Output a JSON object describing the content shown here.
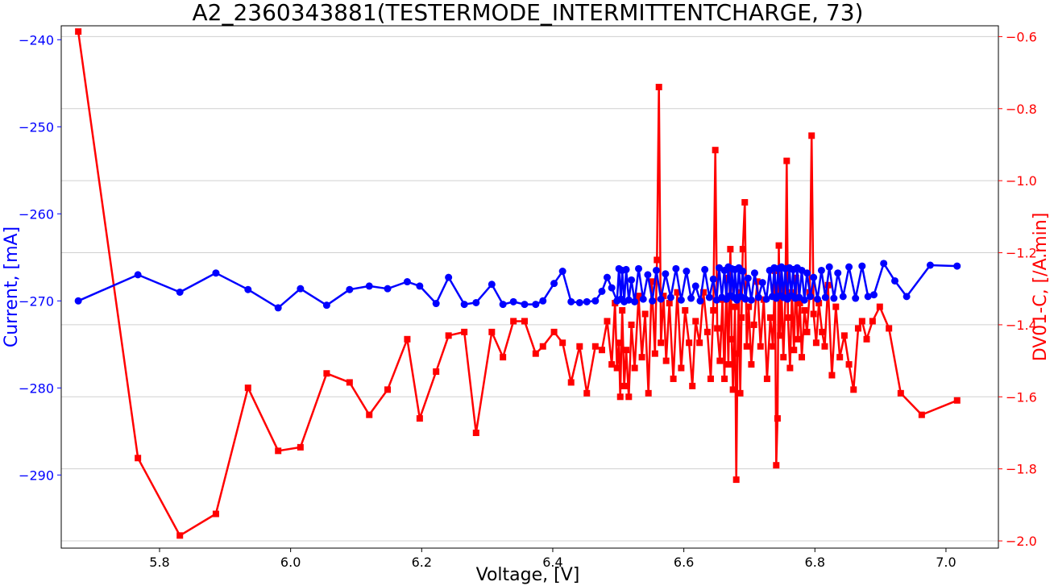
{
  "chart_data": {
    "type": "line",
    "title": "A2_2360343881(TESTERMODE_INTERMITTENTCHARGE, 73)",
    "xlabel": "Voltage, [V]",
    "ylabel_left": "Current, [mA]",
    "ylabel_right": "DV01-C, [/A.min]",
    "xlim": [
      5.65,
      7.08
    ],
    "ylim_left": [
      -298.4,
      -238.4
    ],
    "ylim_right": [
      -2.02,
      -0.57
    ],
    "x_ticks": [
      "5.8",
      "6.0",
      "6.2",
      "6.4",
      "6.6",
      "6.8",
      "7.0"
    ],
    "y_left_ticks": [
      "-240",
      "-250",
      "-260",
      "-270",
      "-280",
      "-290"
    ],
    "y_right_ticks": [
      "-0.6",
      "-0.8",
      "-1.0",
      "-1.2",
      "-1.4",
      "-1.6",
      "-1.8",
      "-2.0"
    ],
    "grid": "horizontal-right-axis",
    "colors": {
      "current": "#0000ff",
      "dv": "#ff0000"
    },
    "series": [
      {
        "axis": "left",
        "marker": "circle",
        "points": [
          [
            5.676,
            -270.0
          ],
          [
            5.767,
            -267.0
          ],
          [
            5.831,
            -269.0
          ],
          [
            5.886,
            -266.8
          ],
          [
            5.935,
            -268.7
          ],
          [
            5.981,
            -270.8
          ],
          [
            6.015,
            -268.6
          ],
          [
            6.055,
            -270.5
          ],
          [
            6.09,
            -268.7
          ],
          [
            6.12,
            -268.3
          ],
          [
            6.148,
            -268.6
          ],
          [
            6.178,
            -267.8
          ],
          [
            6.197,
            -268.3
          ],
          [
            6.222,
            -270.3
          ],
          [
            6.241,
            -267.3
          ],
          [
            6.265,
            -270.4
          ],
          [
            6.283,
            -270.2
          ],
          [
            6.307,
            -268.1
          ],
          [
            6.324,
            -270.4
          ],
          [
            6.34,
            -270.1
          ],
          [
            6.357,
            -270.4
          ],
          [
            6.374,
            -270.4
          ],
          [
            6.385,
            -270.0
          ],
          [
            6.402,
            -268.0
          ],
          [
            6.415,
            -266.6
          ],
          [
            6.428,
            -270.1
          ],
          [
            6.441,
            -270.2
          ],
          [
            6.452,
            -270.1
          ],
          [
            6.465,
            -270.0
          ],
          [
            6.475,
            -268.9
          ],
          [
            6.483,
            -267.3
          ],
          [
            6.49,
            -268.5
          ],
          [
            6.498,
            -270.0
          ],
          [
            6.501,
            -266.3
          ],
          [
            6.504,
            -269.8
          ],
          [
            6.506,
            -266.5
          ],
          [
            6.509,
            -270.1
          ],
          [
            6.512,
            -266.4
          ],
          [
            6.516,
            -269.9
          ],
          [
            6.52,
            -267.6
          ],
          [
            6.525,
            -270.1
          ],
          [
            6.531,
            -266.3
          ],
          [
            6.538,
            -269.8
          ],
          [
            6.545,
            -267.0
          ],
          [
            6.552,
            -270.0
          ],
          [
            6.558,
            -266.5
          ],
          [
            6.565,
            -269.8
          ],
          [
            6.572,
            -266.9
          ],
          [
            6.58,
            -269.6
          ],
          [
            6.588,
            -266.3
          ],
          [
            6.596,
            -269.9
          ],
          [
            6.604,
            -266.6
          ],
          [
            6.611,
            -269.7
          ],
          [
            6.618,
            -268.3
          ],
          [
            6.625,
            -270.0
          ],
          [
            6.632,
            -266.4
          ],
          [
            6.639,
            -269.6
          ],
          [
            6.645,
            -267.5
          ],
          [
            6.65,
            -269.9
          ],
          [
            6.654,
            -266.2
          ],
          [
            6.658,
            -269.6
          ],
          [
            6.662,
            -266.5
          ],
          [
            6.665,
            -269.8
          ],
          [
            6.668,
            -266.1
          ],
          [
            6.671,
            -269.4
          ],
          [
            6.673,
            -266.3
          ],
          [
            6.676,
            -269.6
          ],
          [
            6.678,
            -266.4
          ],
          [
            6.681,
            -269.9
          ],
          [
            6.684,
            -266.2
          ],
          [
            6.687,
            -269.5
          ],
          [
            6.69,
            -266.6
          ],
          [
            6.694,
            -269.8
          ],
          [
            6.698,
            -267.4
          ],
          [
            6.703,
            -269.9
          ],
          [
            6.708,
            -266.8
          ],
          [
            6.714,
            -269.6
          ],
          [
            6.72,
            -267.9
          ],
          [
            6.726,
            -269.8
          ],
          [
            6.731,
            -266.5
          ],
          [
            6.735,
            -269.5
          ],
          [
            6.738,
            -266.2
          ],
          [
            6.741,
            -269.7
          ],
          [
            6.744,
            -266.3
          ],
          [
            6.747,
            -269.4
          ],
          [
            6.749,
            -266.1
          ],
          [
            6.752,
            -269.6
          ],
          [
            6.755,
            -266.3
          ],
          [
            6.758,
            -269.8
          ],
          [
            6.761,
            -266.2
          ],
          [
            6.764,
            -269.4
          ],
          [
            6.767,
            -266.4
          ],
          [
            6.77,
            -269.7
          ],
          [
            6.773,
            -266.2
          ],
          [
            6.776,
            -269.6
          ],
          [
            6.78,
            -266.5
          ],
          [
            6.784,
            -269.9
          ],
          [
            6.788,
            -266.8
          ],
          [
            6.793,
            -269.5
          ],
          [
            6.798,
            -267.3
          ],
          [
            6.804,
            -269.8
          ],
          [
            6.81,
            -266.5
          ],
          [
            6.816,
            -269.6
          ],
          [
            6.822,
            -266.1
          ],
          [
            6.829,
            -269.7
          ],
          [
            6.835,
            -266.8
          ],
          [
            6.843,
            -269.5
          ],
          [
            6.852,
            -266.1
          ],
          [
            6.862,
            -269.7
          ],
          [
            6.872,
            -266.0
          ],
          [
            6.881,
            -269.5
          ],
          [
            6.89,
            -269.3
          ],
          [
            6.905,
            -265.7
          ],
          [
            6.922,
            -267.7
          ],
          [
            6.94,
            -269.5
          ],
          [
            6.976,
            -265.9
          ],
          [
            7.017,
            -266.0
          ]
        ]
      },
      {
        "axis": "right",
        "marker": "square",
        "points": [
          [
            5.676,
            -0.586
          ],
          [
            5.767,
            -1.77
          ],
          [
            5.831,
            -1.985
          ],
          [
            5.886,
            -1.925
          ],
          [
            5.935,
            -1.575
          ],
          [
            5.981,
            -1.75
          ],
          [
            6.015,
            -1.74
          ],
          [
            6.055,
            -1.535
          ],
          [
            6.09,
            -1.56
          ],
          [
            6.12,
            -1.65
          ],
          [
            6.148,
            -1.58
          ],
          [
            6.178,
            -1.44
          ],
          [
            6.197,
            -1.66
          ],
          [
            6.222,
            -1.53
          ],
          [
            6.241,
            -1.43
          ],
          [
            6.265,
            -1.42
          ],
          [
            6.283,
            -1.7
          ],
          [
            6.307,
            -1.42
          ],
          [
            6.324,
            -1.49
          ],
          [
            6.34,
            -1.39
          ],
          [
            6.357,
            -1.39
          ],
          [
            6.374,
            -1.48
          ],
          [
            6.385,
            -1.46
          ],
          [
            6.402,
            -1.42
          ],
          [
            6.415,
            -1.45
          ],
          [
            6.428,
            -1.56
          ],
          [
            6.441,
            -1.46
          ],
          [
            6.452,
            -1.59
          ],
          [
            6.465,
            -1.46
          ],
          [
            6.475,
            -1.47
          ],
          [
            6.483,
            -1.39
          ],
          [
            6.49,
            -1.51
          ],
          [
            6.495,
            -1.34
          ],
          [
            6.498,
            -1.52
          ],
          [
            6.501,
            -1.45
          ],
          [
            6.503,
            -1.6
          ],
          [
            6.506,
            -1.36
          ],
          [
            6.509,
            -1.57
          ],
          [
            6.512,
            -1.47
          ],
          [
            6.516,
            -1.6
          ],
          [
            6.52,
            -1.4
          ],
          [
            6.525,
            -1.52
          ],
          [
            6.531,
            -1.32
          ],
          [
            6.536,
            -1.49
          ],
          [
            6.541,
            -1.37
          ],
          [
            6.546,
            -1.59
          ],
          [
            6.551,
            -1.28
          ],
          [
            6.556,
            -1.48
          ],
          [
            6.559,
            -1.22
          ],
          [
            6.562,
            -0.74
          ],
          [
            6.565,
            -1.45
          ],
          [
            6.569,
            -1.32
          ],
          [
            6.573,
            -1.5
          ],
          [
            6.578,
            -1.34
          ],
          [
            6.584,
            -1.55
          ],
          [
            6.59,
            -1.31
          ],
          [
            6.596,
            -1.52
          ],
          [
            6.602,
            -1.36
          ],
          [
            6.608,
            -1.45
          ],
          [
            6.613,
            -1.57
          ],
          [
            6.618,
            -1.39
          ],
          [
            6.624,
            -1.45
          ],
          [
            6.63,
            -1.31
          ],
          [
            6.636,
            -1.42
          ],
          [
            6.641,
            -1.55
          ],
          [
            6.645,
            -1.36
          ],
          [
            6.648,
            -0.915
          ],
          [
            6.651,
            -1.41
          ],
          [
            6.655,
            -1.5
          ],
          [
            6.659,
            -1.33
          ],
          [
            6.662,
            -1.55
          ],
          [
            6.665,
            -1.27
          ],
          [
            6.668,
            -1.51
          ],
          [
            6.671,
            -1.19
          ],
          [
            6.673,
            -1.44
          ],
          [
            6.675,
            -1.58
          ],
          [
            6.678,
            -1.35
          ],
          [
            6.68,
            -1.83
          ],
          [
            6.682,
            -1.48
          ],
          [
            6.684,
            -1.31
          ],
          [
            6.686,
            -1.59
          ],
          [
            6.688,
            -1.38
          ],
          [
            6.69,
            -1.19
          ],
          [
            6.693,
            -1.06
          ],
          [
            6.696,
            -1.46
          ],
          [
            6.699,
            -1.35
          ],
          [
            6.703,
            -1.51
          ],
          [
            6.707,
            -1.4
          ],
          [
            6.712,
            -1.28
          ],
          [
            6.717,
            -1.46
          ],
          [
            6.722,
            -1.33
          ],
          [
            6.727,
            -1.55
          ],
          [
            6.732,
            -1.38
          ],
          [
            6.736,
            -1.46
          ],
          [
            6.739,
            -1.25
          ],
          [
            6.741,
            -1.79
          ],
          [
            6.743,
            -1.66
          ],
          [
            6.745,
            -1.18
          ],
          [
            6.747,
            -1.43
          ],
          [
            6.749,
            -1.3
          ],
          [
            6.752,
            -1.49
          ],
          [
            6.755,
            -1.32
          ],
          [
            6.757,
            -0.945
          ],
          [
            6.759,
            -1.38
          ],
          [
            6.762,
            -1.52
          ],
          [
            6.765,
            -1.31
          ],
          [
            6.768,
            -1.47
          ],
          [
            6.771,
            -1.27
          ],
          [
            6.774,
            -1.44
          ],
          [
            6.777,
            -1.34
          ],
          [
            6.78,
            -1.49
          ],
          [
            6.784,
            -1.36
          ],
          [
            6.788,
            -1.42
          ],
          [
            6.792,
            -1.31
          ],
          [
            6.795,
            -0.875
          ],
          [
            6.798,
            -1.37
          ],
          [
            6.802,
            -1.45
          ],
          [
            6.806,
            -1.34
          ],
          [
            6.811,
            -1.42
          ],
          [
            6.815,
            -1.46
          ],
          [
            6.82,
            -1.29
          ],
          [
            6.826,
            -1.54
          ],
          [
            6.832,
            -1.35
          ],
          [
            6.838,
            -1.49
          ],
          [
            6.845,
            -1.43
          ],
          [
            6.852,
            -1.51
          ],
          [
            6.859,
            -1.58
          ],
          [
            6.866,
            -1.41
          ],
          [
            6.872,
            -1.39
          ],
          [
            6.879,
            -1.44
          ],
          [
            6.888,
            -1.39
          ],
          [
            6.899,
            -1.35
          ],
          [
            6.913,
            -1.41
          ],
          [
            6.931,
            -1.59
          ],
          [
            6.963,
            -1.65
          ],
          [
            7.017,
            -1.61
          ]
        ]
      }
    ]
  }
}
